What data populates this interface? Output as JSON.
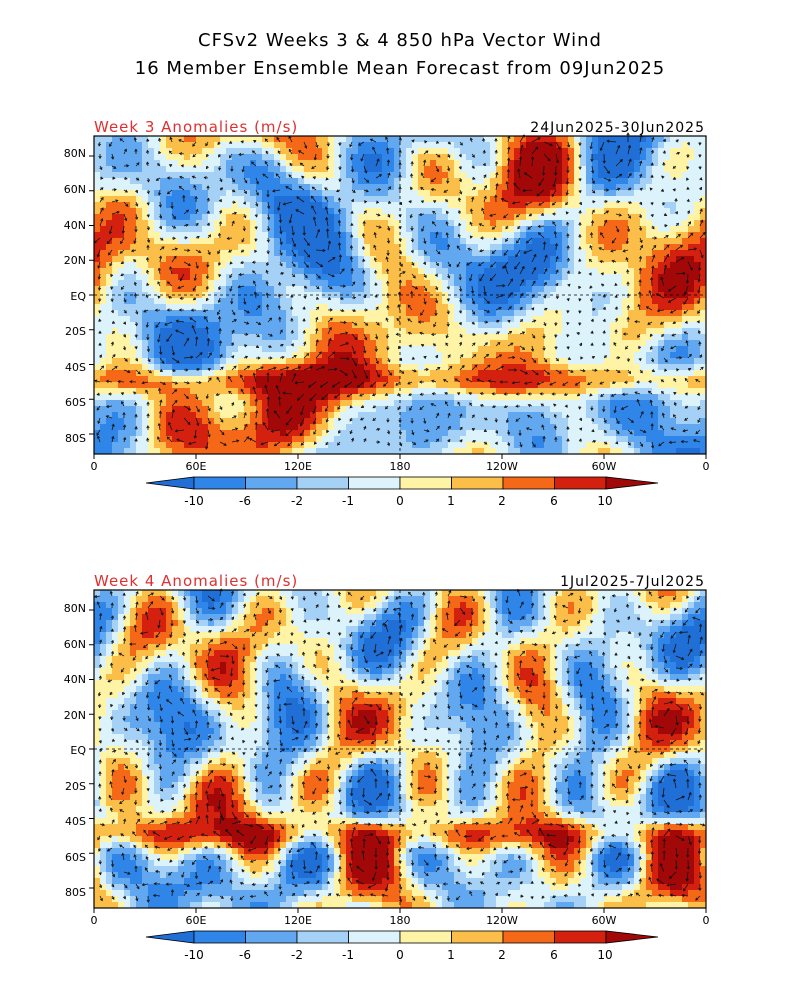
{
  "header": {
    "line1": "CFSv2 Weeks 3 & 4 850 hPa Vector Wind",
    "line2": "16 Member Ensemble Mean Forecast from 09Jun2025"
  },
  "axes": {
    "lat_labels": [
      "80N",
      "60N",
      "40N",
      "20N",
      "EQ",
      "20S",
      "40S",
      "60S",
      "80S"
    ],
    "lon_labels": [
      "0",
      "60E",
      "120E",
      "180",
      "120W",
      "60W",
      "0"
    ]
  },
  "panels": [
    {
      "title": "Week 3 Anomalies (m/s)",
      "dates": "24Jun2025-30Jun2025",
      "seed": 11
    },
    {
      "title": "Week 4 Anomalies (m/s)",
      "dates": "1Jul2025-7Jul2025",
      "seed": 47
    }
  ],
  "colorbar": {
    "labels": [
      "-10",
      "-6",
      "-2",
      "-1",
      "0",
      "1",
      "2",
      "6",
      "10"
    ],
    "colors": [
      "#1f6fd6",
      "#2f86e8",
      "#62a8f0",
      "#a6d1f6",
      "#dcf3fb",
      "#fff3a6",
      "#fbbe48",
      "#f56818",
      "#d4200e",
      "#a30808"
    ]
  }
}
